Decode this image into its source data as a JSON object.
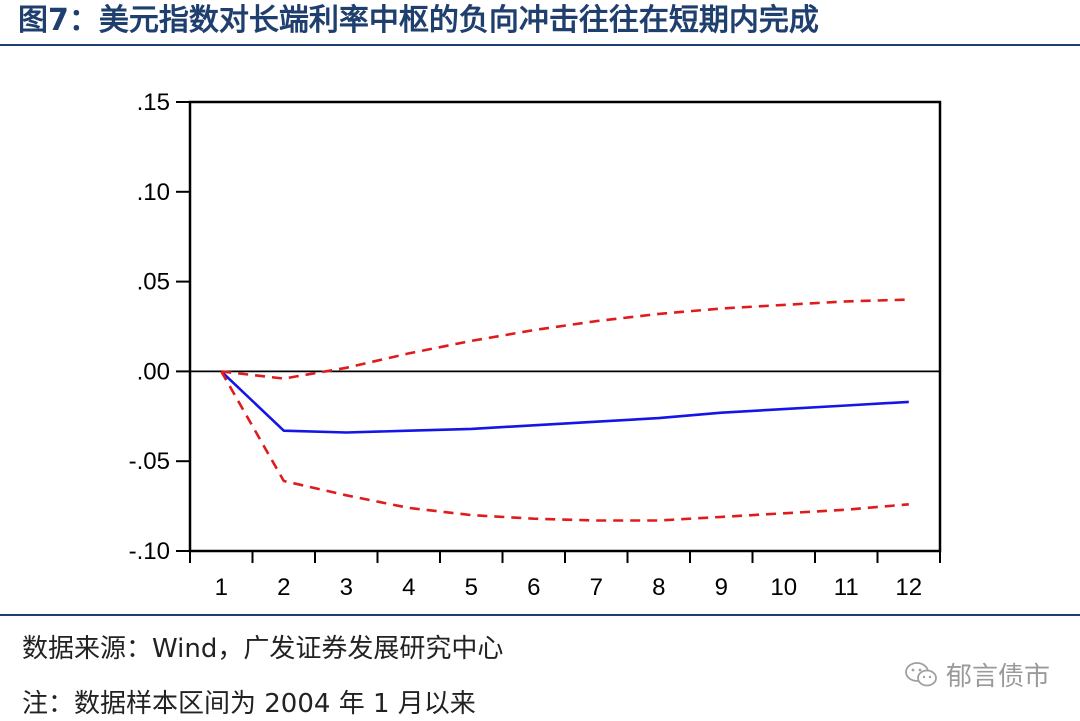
{
  "figure": {
    "title": "图7：美元指数对长端利率中枢的负向冲击往往在短期内完成",
    "source": "数据来源：Wind，广发证券发展研究中心",
    "note": "注：数据样本区间为 2004 年 1 月以来",
    "watermark": "郁言债市",
    "watermark_icon": "wechat-icon"
  },
  "colors": {
    "title": "#1f3f6e",
    "response": "#1515e6",
    "band": "#e01b1b",
    "axis": "#000000"
  },
  "chart_data": {
    "type": "line",
    "title": "",
    "xlabel": "",
    "ylabel": "",
    "x": [
      1,
      2,
      3,
      4,
      5,
      6,
      7,
      8,
      9,
      10,
      11,
      12
    ],
    "xlim": [
      0.5,
      12.5
    ],
    "ylim": [
      -0.1,
      0.15
    ],
    "yticks": [
      -0.1,
      -0.05,
      0.0,
      0.05,
      0.1,
      0.15
    ],
    "ytick_labels": [
      "-.10",
      "-.05",
      ".00",
      ".05",
      ".10",
      ".15"
    ],
    "xtick_labels": [
      "1",
      "2",
      "3",
      "4",
      "5",
      "6",
      "7",
      "8",
      "9",
      "10",
      "11",
      "12"
    ],
    "zero_line": true,
    "grid": false,
    "legend": "none",
    "series": [
      {
        "style": "solid",
        "color": "#1515e6",
        "values": [
          0.0,
          -0.033,
          -0.034,
          -0.033,
          -0.032,
          -0.03,
          -0.028,
          -0.026,
          -0.023,
          -0.021,
          -0.019,
          -0.017
        ]
      },
      {
        "style": "dashed",
        "color": "#e01b1b",
        "values": [
          0.0,
          -0.004,
          0.002,
          0.01,
          0.017,
          0.023,
          0.028,
          0.032,
          0.035,
          0.037,
          0.039,
          0.04
        ]
      },
      {
        "style": "dashed",
        "color": "#e01b1b",
        "values": [
          0.0,
          -0.061,
          -0.069,
          -0.076,
          -0.08,
          -0.082,
          -0.083,
          -0.083,
          -0.081,
          -0.079,
          -0.077,
          -0.074
        ]
      }
    ]
  }
}
